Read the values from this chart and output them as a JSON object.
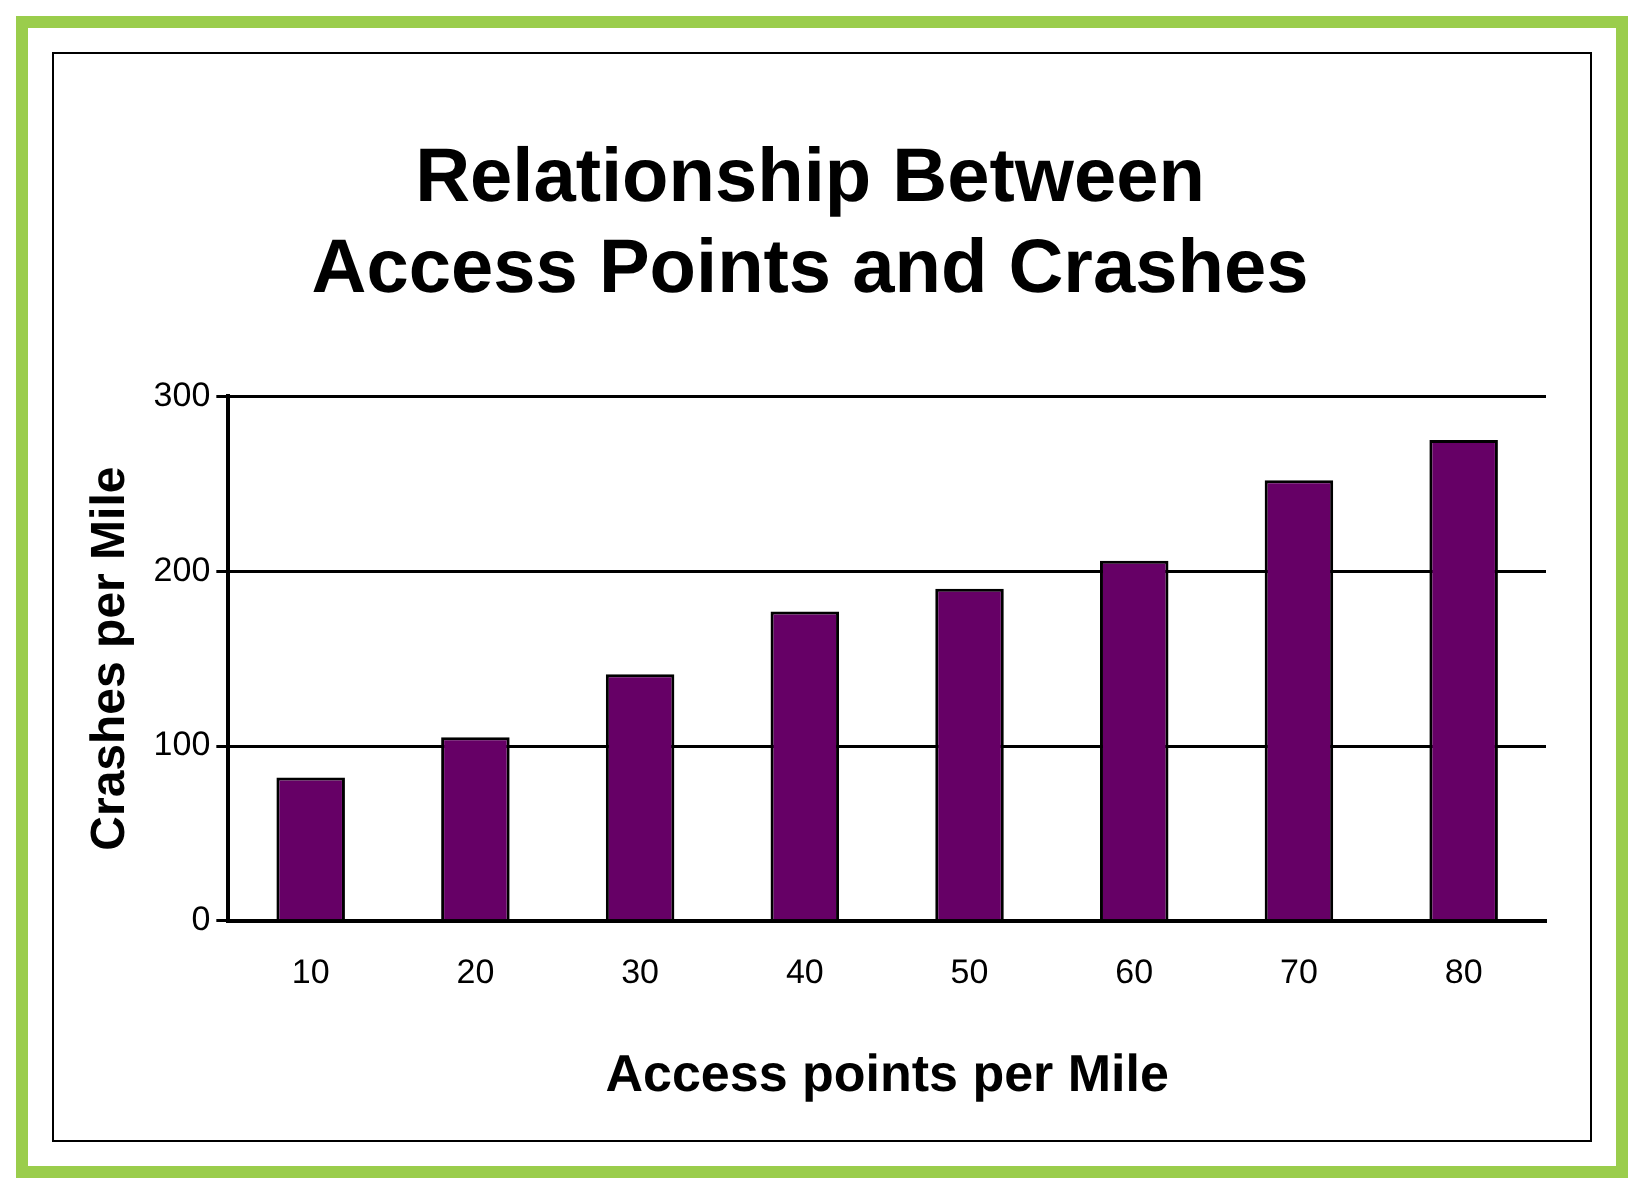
{
  "chart_data": {
    "type": "bar",
    "title": "Relationship Between Access Points and Crashes",
    "xlabel": "Access points per Mile",
    "ylabel": "Crashes per Mile",
    "categories": [
      "10",
      "20",
      "30",
      "40",
      "50",
      "60",
      "70",
      "80"
    ],
    "values": [
      82,
      105,
      141,
      177,
      190,
      206,
      252,
      275
    ],
    "color": "#660066",
    "ylim": [
      0,
      300
    ],
    "yticks": [
      0,
      100,
      200,
      300
    ],
    "grid": "y",
    "legend": false
  }
}
